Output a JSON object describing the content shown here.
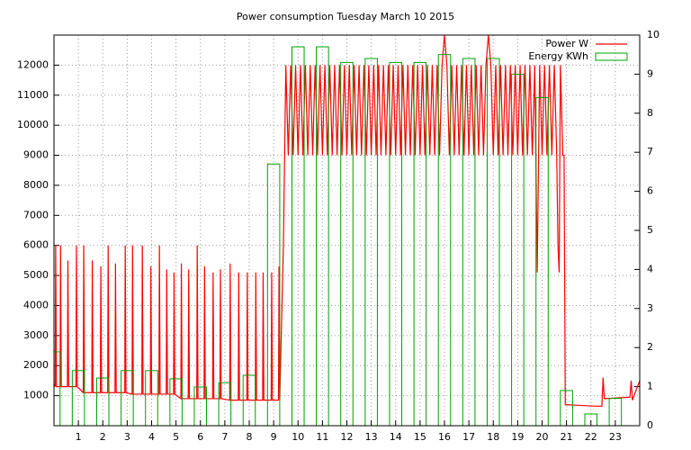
{
  "chart_data": {
    "type": "line",
    "title": "Power consumption Tuesday March 10 2015",
    "xlim": [
      0,
      24
    ],
    "xticks": [
      1,
      2,
      3,
      4,
      5,
      6,
      7,
      8,
      9,
      10,
      11,
      12,
      13,
      14,
      15,
      16,
      17,
      18,
      19,
      20,
      21,
      22,
      23
    ],
    "ylim": [
      0,
      13000
    ],
    "yticks": [
      1000,
      2000,
      3000,
      4000,
      5000,
      6000,
      7000,
      8000,
      9000,
      10000,
      11000,
      12000
    ],
    "y2lim": [
      0,
      10
    ],
    "y2ticks": [
      0,
      1,
      2,
      3,
      4,
      5,
      6,
      7,
      8,
      9,
      10
    ],
    "grid": true,
    "legend": "top-right",
    "series": [
      {
        "name": "Power W",
        "color": "#ff0000",
        "x": [
          0,
          0.05,
          0.07,
          0.1,
          0.25,
          0.27,
          0.3,
          0.55,
          0.57,
          0.6,
          0.9,
          0.92,
          0.95,
          1.2,
          1.22,
          1.25,
          1.55,
          1.57,
          1.6,
          1.9,
          1.92,
          1.95,
          2.2,
          2.22,
          2.25,
          2.5,
          2.52,
          2.55,
          2.9,
          2.92,
          2.95,
          3.2,
          3.22,
          3.25,
          3.6,
          3.62,
          3.65,
          3.95,
          3.97,
          4,
          4.3,
          4.32,
          4.35,
          4.6,
          4.62,
          4.65,
          4.9,
          4.92,
          4.95,
          5.2,
          5.22,
          5.25,
          5.5,
          5.52,
          5.55,
          5.85,
          5.87,
          5.9,
          6.15,
          6.17,
          6.2,
          6.5,
          6.52,
          6.55,
          6.8,
          6.82,
          6.85,
          7.2,
          7.22,
          7.25,
          7.55,
          7.57,
          7.6,
          7.9,
          7.92,
          7.95,
          8.25,
          8.27,
          8.3,
          8.55,
          8.57,
          8.6,
          8.9,
          8.92,
          8.95,
          9.2,
          9.22,
          9.25,
          9.4,
          9.5,
          9.6,
          9.7,
          9.8,
          9.9,
          10,
          10.1,
          10.2,
          10.3,
          10.4,
          10.5,
          10.6,
          10.7,
          10.8,
          10.9,
          11,
          11.1,
          11.2,
          11.3,
          11.4,
          11.5,
          11.6,
          11.7,
          11.8,
          11.9,
          12,
          12.1,
          12.2,
          12.3,
          12.4,
          12.5,
          12.6,
          12.7,
          12.8,
          12.9,
          13,
          13.1,
          13.2,
          13.3,
          13.4,
          13.5,
          13.6,
          13.7,
          13.8,
          13.9,
          14,
          14.1,
          14.2,
          14.3,
          14.4,
          14.5,
          14.6,
          14.7,
          14.8,
          14.9,
          15,
          15.1,
          15.2,
          15.3,
          15.4,
          15.5,
          15.6,
          15.7,
          15.8,
          15.9,
          16,
          16.1,
          16.2,
          16.3,
          16.4,
          16.5,
          16.6,
          16.7,
          16.8,
          16.9,
          17,
          17.1,
          17.2,
          17.3,
          17.4,
          17.5,
          17.6,
          17.7,
          17.8,
          17.9,
          18,
          18.1,
          18.2,
          18.3,
          18.4,
          18.5,
          18.6,
          18.7,
          18.8,
          18.9,
          19,
          19.1,
          19.2,
          19.3,
          19.4,
          19.5,
          19.6,
          19.7,
          19.8,
          19.9,
          20,
          20.1,
          20.2,
          20.3,
          20.4,
          20.5,
          20.6,
          20.65,
          20.7,
          20.75,
          20.85,
          20.9,
          20.95,
          22.2,
          22.45,
          22.5,
          22.55,
          23.6,
          23.65,
          23.7,
          24
        ],
        "values": [
          1400,
          1300,
          6000,
          1300,
          1300,
          6000,
          1300,
          1300,
          5500,
          1300,
          1300,
          6000,
          1300,
          1100,
          6000,
          1100,
          1100,
          5500,
          1100,
          1100,
          5300,
          1100,
          1100,
          6000,
          1100,
          1100,
          5400,
          1100,
          1100,
          6000,
          1100,
          1050,
          6000,
          1050,
          1050,
          6000,
          1050,
          1050,
          5300,
          1050,
          1050,
          6000,
          1050,
          1050,
          5200,
          1050,
          1050,
          5100,
          1050,
          900,
          5400,
          900,
          900,
          5200,
          900,
          900,
          6000,
          900,
          900,
          5300,
          900,
          900,
          5100,
          900,
          900,
          5200,
          900,
          850,
          5400,
          850,
          850,
          5100,
          850,
          850,
          5100,
          850,
          850,
          5100,
          850,
          850,
          5100,
          850,
          850,
          5100,
          850,
          850,
          5300,
          850,
          6000,
          12000,
          9000,
          12000,
          9000,
          12000,
          9000,
          12000,
          9000,
          12000,
          9000,
          12000,
          9000,
          12000,
          9000,
          12000,
          9000,
          12000,
          9000,
          12000,
          9000,
          12000,
          9000,
          12000,
          9000,
          12000,
          9000,
          12000,
          9000,
          12000,
          9000,
          12000,
          9000,
          12000,
          9000,
          12000,
          9000,
          12000,
          9000,
          12000,
          9000,
          12000,
          9000,
          12000,
          9000,
          12000,
          9000,
          12000,
          9000,
          12000,
          9000,
          12000,
          9000,
          12000,
          9000,
          12000,
          9000,
          12000,
          9000,
          12000,
          9000,
          12000,
          9000,
          12000,
          9000,
          12000,
          13000,
          12000,
          9000,
          12000,
          9000,
          12000,
          9000,
          12000,
          9000,
          12000,
          9000,
          12000,
          9000,
          12000,
          9000,
          12000,
          9000,
          12000,
          13000,
          12000,
          9000,
          12000,
          9000,
          12000,
          9000,
          12000,
          9000,
          12000,
          9000,
          12000,
          9000,
          12000,
          9000,
          12000,
          9000,
          12000,
          9000,
          12000,
          5100,
          12000,
          9000,
          12000,
          9000,
          12000,
          9000,
          12000,
          9000,
          6000,
          5100,
          12000,
          9000,
          9000,
          700,
          650,
          650,
          1600,
          900,
          950,
          1500,
          850,
          1500
        ]
      },
      {
        "name": "Energy KWh",
        "color": "#00a000",
        "axis": "y2",
        "x": [
          0,
          1,
          2,
          3,
          4,
          5,
          6,
          7,
          8,
          9,
          10,
          11,
          12,
          13,
          14,
          15,
          16,
          17,
          18,
          19,
          20,
          21,
          22,
          23
        ],
        "values": [
          1.89,
          1.41,
          1.22,
          1.41,
          1.41,
          1.2,
          0.99,
          1.1,
          1.29,
          6.7,
          9.7,
          9.7,
          9.3,
          9.4,
          9.3,
          9.3,
          9.5,
          9.4,
          9.4,
          9.0,
          8.4,
          0.9,
          0.3,
          0.7
        ]
      }
    ]
  }
}
